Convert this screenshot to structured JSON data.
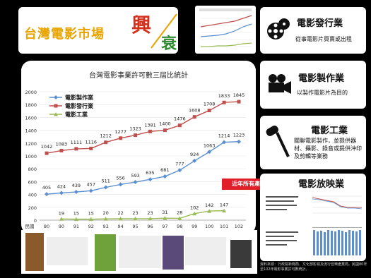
{
  "header": {
    "title_main": "台灣電影市場",
    "title_rise": "興",
    "title_fall": "衰"
  },
  "chart_data": {
    "type": "line",
    "title": "台灣電影事業許可數三屆比統計",
    "x": [
      "民國80",
      "90",
      "91",
      "92",
      "93",
      "94",
      "95",
      "96",
      "97",
      "98",
      "99",
      "100",
      "101",
      "102"
    ],
    "x_ticks": [
      "80",
      "90",
      "91",
      "92",
      "93",
      "94",
      "95",
      "96",
      "97",
      "98",
      "99",
      "100",
      "101",
      "102"
    ],
    "x_prefix": "民國",
    "ylim": [
      0,
      2000
    ],
    "y_ticks": [
      0,
      200,
      400,
      600,
      800,
      1000,
      1200,
      1400,
      1600,
      1800,
      2000
    ],
    "series": [
      {
        "name": "電影製作業",
        "color": "#5b8fd0",
        "marker": "diamond",
        "values": [
          405,
          424,
          439,
          457,
          511,
          556,
          593,
          635,
          681,
          777,
          924,
          1063,
          1214,
          1223
        ]
      },
      {
        "name": "電影發行業",
        "color": "#c0504d",
        "marker": "square",
        "values": [
          1042,
          1083,
          1111,
          1116,
          1212,
          1277,
          1323,
          1381,
          1400,
          1476,
          1608,
          1708,
          1833,
          1845
        ]
      },
      {
        "name": "電影工業",
        "color": "#9bbb59",
        "marker": "triangle",
        "values": [
          null,
          19,
          15,
          15,
          20,
          22,
          23,
          23,
          31,
          28,
          102,
          142,
          147,
          null
        ]
      }
    ],
    "data_labels": [
      [
        "405",
        "424",
        "439",
        "457",
        "511",
        "556",
        "593",
        "635",
        "681",
        "777",
        "924",
        "1063",
        "1214",
        "1223"
      ],
      [
        "1042",
        "1083",
        "1111",
        "1116",
        "1212",
        "1277",
        "1323",
        "1381",
        "1400",
        "1476",
        "1608",
        "1708",
        "1833",
        "1845"
      ],
      [
        "",
        "19",
        "15",
        "15",
        "20",
        "22",
        "23",
        "23",
        "31",
        "28",
        "102",
        "142",
        "147",
        ""
      ]
    ],
    "grid": true,
    "legend": "top-left"
  },
  "arrow_label": "近年所有產業發展",
  "right_panels": [
    {
      "title": "電影發行業",
      "desc": "從事電影片買賣或出租"
    },
    {
      "title": "電影製作業",
      "desc": "以製作電影片為目的"
    },
    {
      "title": "電影工業",
      "desc": "關聯電影製作，並提供器材、攝影、錄音或提供沖印及剪輯等業務"
    },
    {
      "title": "電影放映業"
    }
  ],
  "footnote": "資料來源：行政院新聞局、文化部影視及流行音樂產業局。民國80年至102年電影事業許可數統計。",
  "colors": {
    "background": "#000000",
    "accent_red": "#e11d2a",
    "title_gold": "#e8a400"
  }
}
